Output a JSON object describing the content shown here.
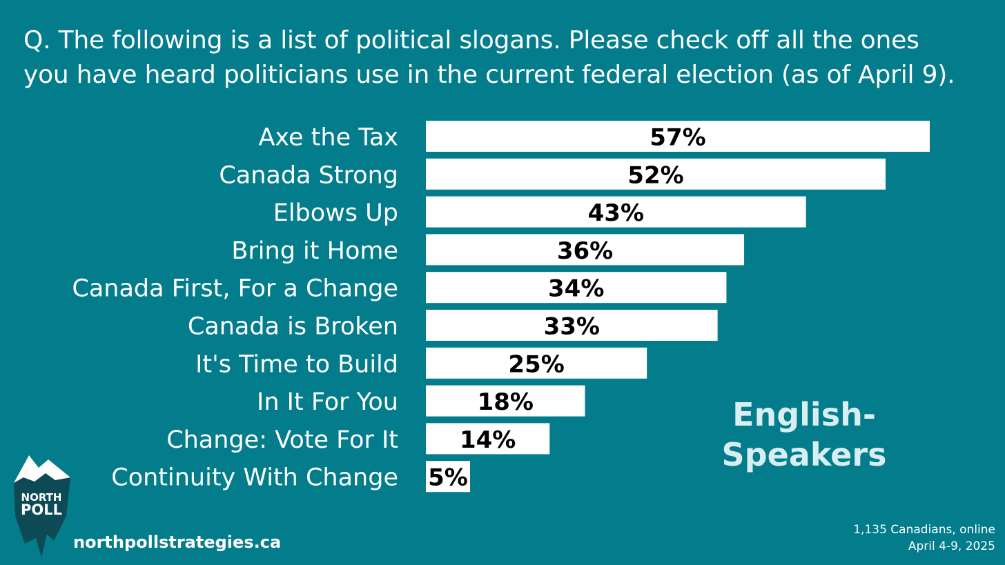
{
  "question": {
    "line1": "Q. The following is a list of political slogans. Please check off all the ones",
    "line2": "you have heard politicians use in the current federal election (as of April 9)."
  },
  "chart_data": {
    "type": "bar",
    "orientation": "horizontal",
    "categories": [
      "Axe the Tax",
      "Canada Strong",
      "Elbows Up",
      "Bring it Home",
      "Canada First, For a Change",
      "Canada is Broken",
      "It's Time to Build",
      "In It For You",
      "Change: Vote For It",
      "Continuity With Change"
    ],
    "values": [
      57,
      52,
      43,
      36,
      34,
      33,
      25,
      18,
      14,
      5
    ],
    "value_labels": [
      "57%",
      "52%",
      "43%",
      "36%",
      "34%",
      "33%",
      "25%",
      "18%",
      "14%",
      "5%"
    ],
    "xlim": [
      0,
      60
    ],
    "grid": false,
    "bar_color": "#ffffff",
    "background_color": "#037c8c"
  },
  "side_label": {
    "line1": "English-",
    "line2": "Speakers"
  },
  "logo": {
    "line1": "NORTH",
    "line2": "POLL",
    "icon": "iceberg-icon"
  },
  "footer": {
    "url": "northpollstrategies.ca",
    "sample": "1,135 Canadians, online",
    "dates": "April 4-9, 2025"
  }
}
